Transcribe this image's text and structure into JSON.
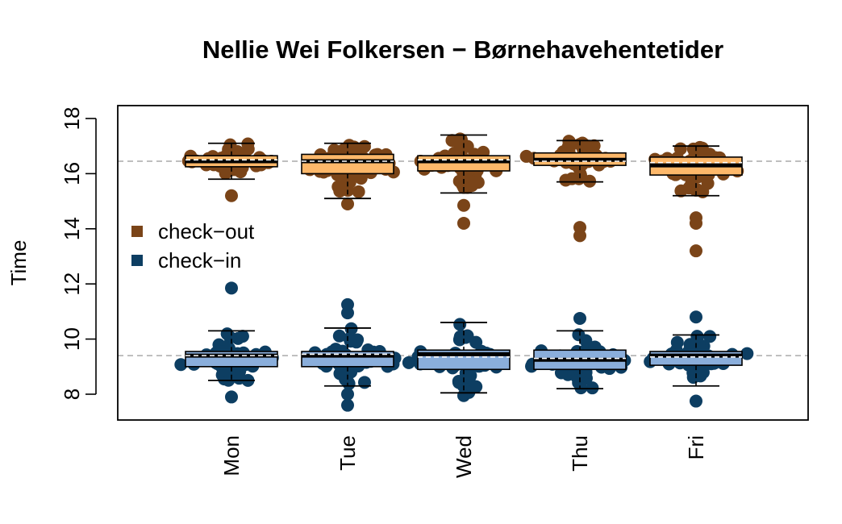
{
  "chart_data": {
    "type": "box",
    "title": "Nellie Wei Folkersen − Børnehavehentetider",
    "xlabel": "",
    "ylabel": "Time",
    "ylim": [
      7,
      18.5
    ],
    "yticks": [
      "8",
      "10",
      "12",
      "14",
      "16",
      "18"
    ],
    "categories": [
      "Mon",
      "Tue",
      "Wed",
      "Thu",
      "Fri"
    ],
    "reference_lines": [
      16.45,
      9.4
    ],
    "grid": false,
    "legend_position": "left",
    "series": [
      {
        "name": "check−out",
        "color": "#7a4418",
        "box_fill": "#fdb86a",
        "boxes": [
          {
            "whisker_low": 15.8,
            "q1": 16.25,
            "median": 16.45,
            "q3": 16.65,
            "whisker_high": 17.1,
            "mean": 16.5
          },
          {
            "whisker_low": 15.1,
            "q1": 16.0,
            "median": 16.45,
            "q3": 16.7,
            "whisker_high": 17.1,
            "mean": 16.45
          },
          {
            "whisker_low": 15.3,
            "q1": 16.1,
            "median": 16.45,
            "q3": 16.65,
            "whisker_high": 17.4,
            "mean": 16.5
          },
          {
            "whisker_low": 15.7,
            "q1": 16.3,
            "median": 16.5,
            "q3": 16.75,
            "whisker_high": 17.2,
            "mean": 16.45
          },
          {
            "whisker_low": 15.2,
            "q1": 15.95,
            "median": 16.3,
            "q3": 16.6,
            "whisker_high": 17.0,
            "mean": 16.4
          }
        ],
        "outliers": [
          [
            15.2
          ],
          [
            14.9
          ],
          [
            14.2,
            14.85,
            15.5
          ],
          [
            13.75,
            14.05
          ],
          [
            13.2,
            14.2,
            14.4,
            15.4
          ]
        ]
      },
      {
        "name": "check−in",
        "color": "#0d3e62",
        "box_fill": "#8aaedb",
        "boxes": [
          {
            "whisker_low": 8.5,
            "q1": 9.0,
            "median": 9.4,
            "q3": 9.55,
            "whisker_high": 10.3,
            "mean": 9.4
          },
          {
            "whisker_low": 8.3,
            "q1": 9.0,
            "median": 9.4,
            "q3": 9.55,
            "whisker_high": 10.4,
            "mean": 9.45
          },
          {
            "whisker_low": 8.05,
            "q1": 8.9,
            "median": 9.45,
            "q3": 9.6,
            "whisker_high": 10.6,
            "mean": 9.35
          },
          {
            "whisker_low": 8.2,
            "q1": 8.9,
            "median": 9.25,
            "q3": 9.6,
            "whisker_high": 10.3,
            "mean": 9.3
          },
          {
            "whisker_low": 8.3,
            "q1": 9.05,
            "median": 9.4,
            "q3": 9.55,
            "whisker_high": 10.15,
            "mean": 9.35
          }
        ],
        "outliers": [
          [
            11.85,
            7.9
          ],
          [
            10.95,
            11.25,
            7.6,
            8.0
          ],
          [
            7.95
          ],
          [
            10.75
          ],
          [
            10.8,
            7.75
          ]
        ]
      }
    ]
  }
}
